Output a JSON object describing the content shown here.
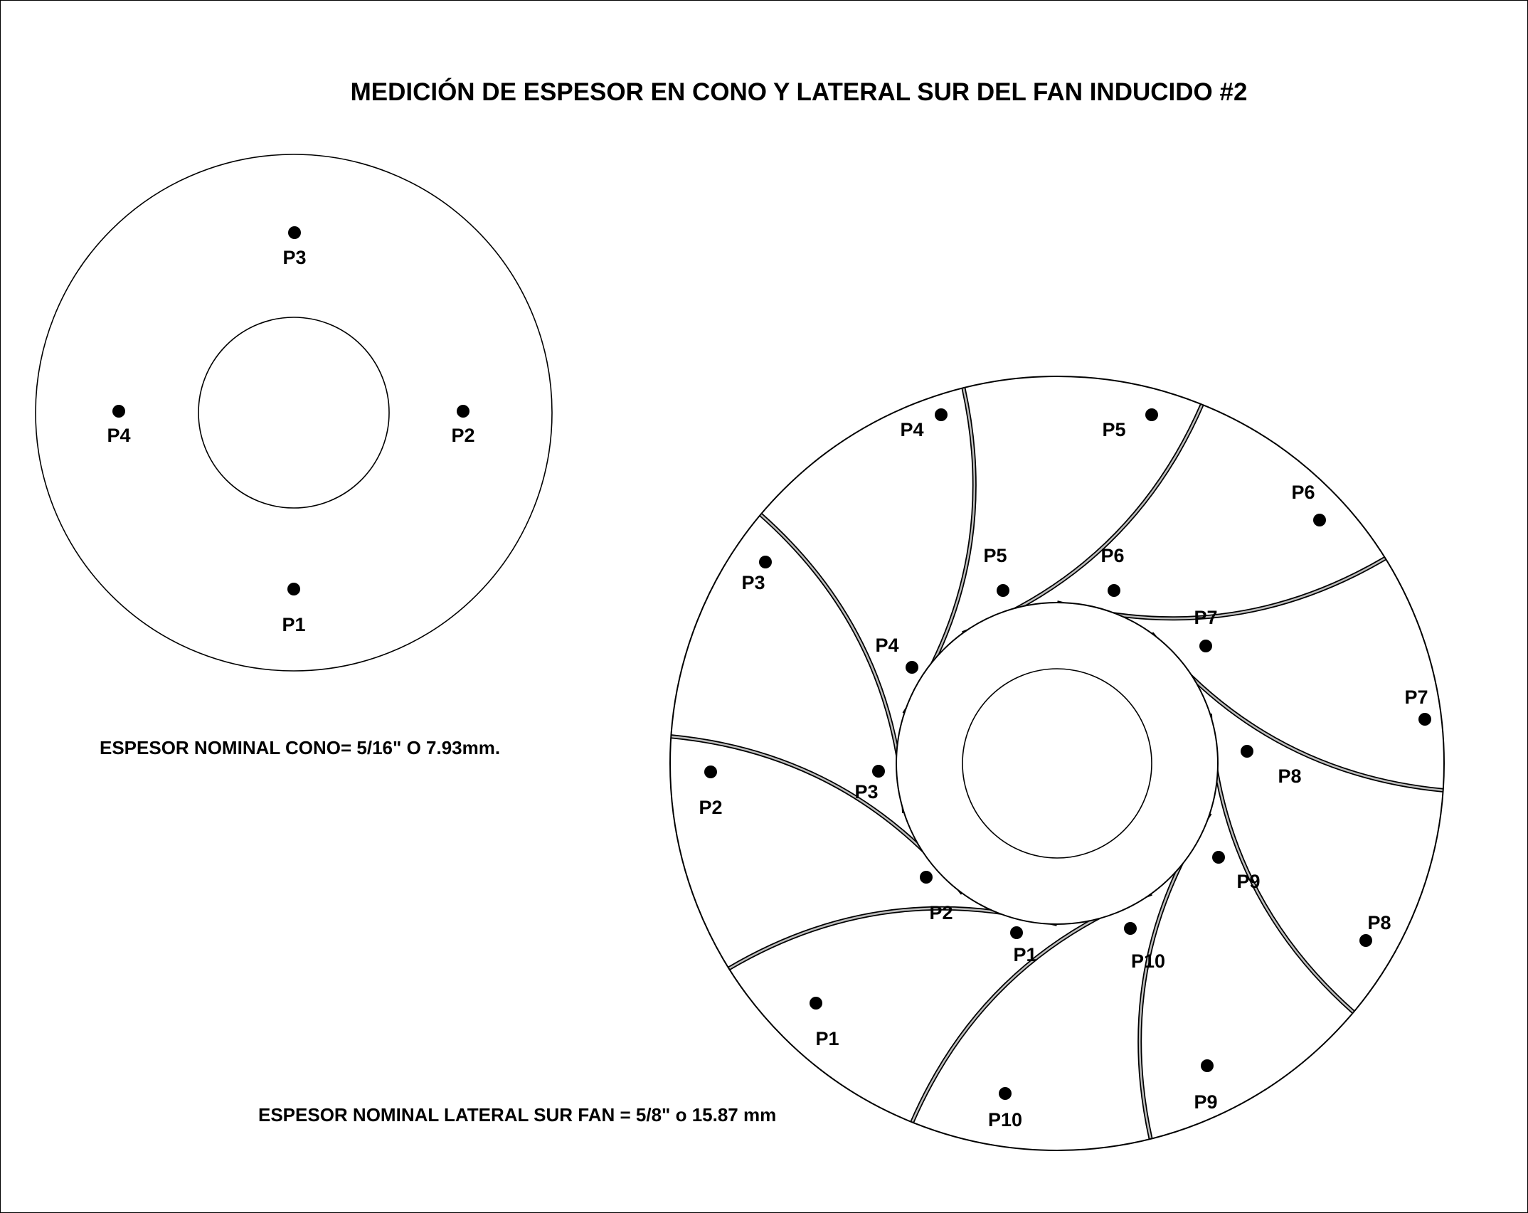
{
  "title": "MEDICIÓN DE ESPESOR EN CONO Y LATERAL SUR DEL FAN INDUCIDO #2",
  "cone": {
    "points": [
      "P1",
      "P2",
      "P3",
      "P4"
    ],
    "note": "ESPESOR NOMINAL CONO= 5/16\" O 7.93mm."
  },
  "fan": {
    "blade_count": 10,
    "inner_points": [
      "P1",
      "P2",
      "P3",
      "P4",
      "P5",
      "P6",
      "P7",
      "P8",
      "P9",
      "P10"
    ],
    "outer_points": [
      "P1",
      "P2",
      "P3",
      "P4",
      "P5",
      "P6",
      "P7",
      "P8",
      "P9",
      "P10"
    ],
    "note": "ESPESOR NOMINAL LATERAL SUR FAN = 5/8\" o 15.87 mm"
  }
}
